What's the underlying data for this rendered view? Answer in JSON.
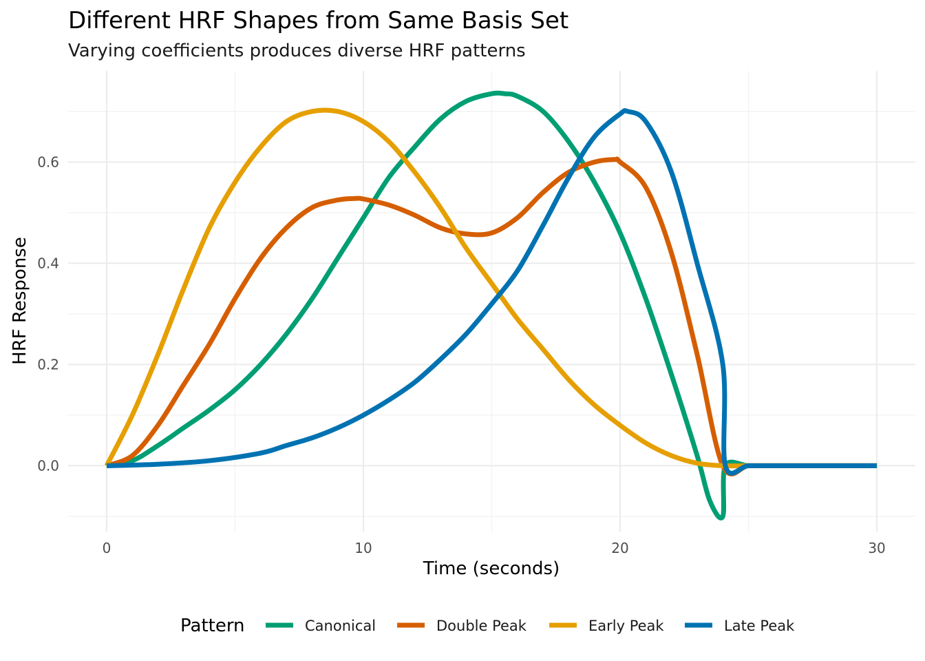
{
  "chart_data": {
    "type": "line",
    "title": "Different HRF Shapes from Same Basis Set",
    "subtitle": "Varying coefficients produces diverse HRF patterns",
    "xlabel": "Time (seconds)",
    "ylabel": "HRF Response",
    "xlim": [
      -1.5,
      31.5
    ],
    "ylim": [
      -0.13,
      0.78
    ],
    "x_ticks": [
      0,
      10,
      20,
      30
    ],
    "y_ticks": [
      0.0,
      0.2,
      0.4,
      0.6
    ],
    "x_tick_labels": [
      "0",
      "10",
      "20",
      "30"
    ],
    "y_tick_labels": [
      "0.0",
      "0.2",
      "0.4",
      "0.6"
    ],
    "grid": true,
    "legend": {
      "title": "Pattern",
      "position": "bottom"
    },
    "series": [
      {
        "name": "Canonical",
        "color": "#009E73",
        "x": [
          0,
          1,
          2,
          3,
          4,
          5,
          6,
          7,
          8,
          9,
          10,
          11,
          12,
          13,
          14,
          15,
          15.5,
          16,
          17,
          18,
          19,
          20,
          21,
          22,
          23,
          23.5,
          24,
          24.1,
          25,
          26,
          27,
          28,
          29,
          30
        ],
        "y": [
          0.0,
          0.01,
          0.04,
          0.075,
          0.11,
          0.15,
          0.2,
          0.26,
          0.33,
          0.41,
          0.49,
          0.57,
          0.63,
          0.685,
          0.72,
          0.735,
          0.735,
          0.73,
          0.7,
          0.64,
          0.56,
          0.46,
          0.33,
          0.18,
          0.02,
          -0.07,
          -0.1,
          0.0,
          0.0,
          0.0,
          0.0,
          0.0,
          0.0,
          0.0
        ]
      },
      {
        "name": "Double Peak",
        "color": "#D55E00",
        "x": [
          0,
          1,
          2,
          3,
          4,
          5,
          6,
          7,
          8,
          9,
          9.7,
          10,
          11,
          12,
          13,
          14,
          15,
          16,
          17,
          18,
          19,
          19.8,
          20,
          21,
          22,
          23,
          24,
          25,
          26,
          27,
          28,
          29,
          30
        ],
        "y": [
          0.0,
          0.02,
          0.08,
          0.16,
          0.24,
          0.33,
          0.41,
          0.47,
          0.51,
          0.525,
          0.528,
          0.527,
          0.515,
          0.495,
          0.47,
          0.458,
          0.46,
          0.49,
          0.54,
          0.58,
          0.6,
          0.605,
          0.6,
          0.55,
          0.42,
          0.22,
          0.0,
          0.0,
          0.0,
          0.0,
          0.0,
          0.0,
          0.0
        ]
      },
      {
        "name": "Early Peak",
        "color": "#E69F00",
        "x": [
          0,
          1,
          2,
          3,
          4,
          5,
          6,
          7,
          8,
          9,
          10,
          11,
          12,
          13,
          14,
          15,
          16,
          17,
          18,
          19,
          20,
          21,
          22,
          23,
          24,
          25,
          26,
          27,
          28,
          29,
          30
        ],
        "y": [
          0.0,
          0.1,
          0.22,
          0.35,
          0.47,
          0.56,
          0.63,
          0.68,
          0.7,
          0.7,
          0.68,
          0.64,
          0.58,
          0.51,
          0.43,
          0.36,
          0.29,
          0.23,
          0.17,
          0.12,
          0.08,
          0.045,
          0.02,
          0.005,
          0.0,
          0.0,
          0.0,
          0.0,
          0.0,
          0.0,
          0.0
        ]
      },
      {
        "name": "Late Peak",
        "color": "#0072B2",
        "x": [
          0,
          2,
          4,
          6,
          7,
          8,
          9,
          10,
          11,
          12,
          13,
          14,
          15,
          16,
          17,
          18,
          19,
          20,
          20.3,
          21,
          22,
          23,
          24,
          24.1,
          25,
          26,
          27,
          28,
          29,
          30
        ],
        "y": [
          0.0,
          0.003,
          0.01,
          0.025,
          0.04,
          0.055,
          0.075,
          0.1,
          0.13,
          0.165,
          0.21,
          0.26,
          0.32,
          0.385,
          0.475,
          0.57,
          0.65,
          0.695,
          0.7,
          0.68,
          0.58,
          0.4,
          0.2,
          0.0,
          0.0,
          0.0,
          0.0,
          0.0,
          0.0,
          0.0
        ]
      }
    ]
  }
}
